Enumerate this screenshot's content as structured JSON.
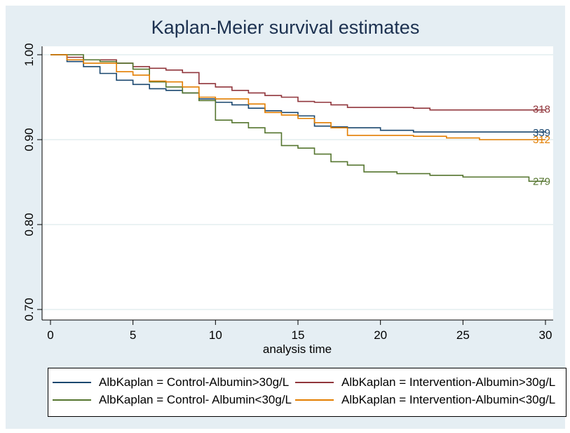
{
  "chart_data": {
    "type": "line",
    "title": "Kaplan-Meier survival estimates",
    "xlabel": "analysis time",
    "ylabel": "",
    "xlim": [
      0,
      30
    ],
    "ylim": [
      0.7,
      1.0
    ],
    "x_ticks": [
      "0",
      "5",
      "10",
      "15",
      "20",
      "25",
      "30"
    ],
    "y_ticks": [
      "0.70",
      "0.80",
      "0.90",
      "1.00"
    ],
    "grid": true,
    "legend_position": "bottom",
    "series": [
      {
        "name": "AlbKaplan = Control-Albumin>30g/L",
        "color": "#1a476f",
        "end_label": "339",
        "x": [
          0,
          1,
          2,
          3,
          4,
          5,
          6,
          7,
          8,
          9,
          10,
          11,
          12,
          13,
          14,
          15,
          16,
          17,
          18,
          20,
          22,
          23,
          25,
          28,
          30
        ],
        "y": [
          1.0,
          0.992,
          0.986,
          0.978,
          0.97,
          0.965,
          0.96,
          0.958,
          0.955,
          0.948,
          0.944,
          0.941,
          0.937,
          0.934,
          0.932,
          0.928,
          0.916,
          0.915,
          0.914,
          0.911,
          0.909,
          0.909,
          0.909,
          0.909,
          0.909
        ]
      },
      {
        "name": "AlbKaplan = Intervention-Albumin>30g/L",
        "color": "#90353b",
        "end_label": "318",
        "x": [
          0,
          1,
          2,
          4,
          5,
          6,
          7,
          8,
          9,
          10,
          11,
          12,
          13,
          14,
          15,
          16,
          17,
          18,
          20,
          22,
          23,
          25,
          28,
          30
        ],
        "y": [
          1.0,
          0.997,
          0.994,
          0.99,
          0.986,
          0.984,
          0.982,
          0.979,
          0.966,
          0.962,
          0.958,
          0.955,
          0.952,
          0.95,
          0.945,
          0.944,
          0.941,
          0.938,
          0.938,
          0.937,
          0.935,
          0.935,
          0.935,
          0.935
        ]
      },
      {
        "name": "AlbKaplan = Control- Albumin<30g/L",
        "color": "#55752f",
        "end_label": "279",
        "x": [
          0,
          1,
          2,
          3,
          4,
          5,
          6,
          7,
          8,
          9,
          10,
          11,
          12,
          13,
          14,
          15,
          16,
          17,
          18,
          19,
          21,
          23,
          25,
          27,
          29,
          30
        ],
        "y": [
          1.0,
          1.0,
          0.994,
          0.992,
          0.99,
          0.983,
          0.968,
          0.962,
          0.955,
          0.946,
          0.923,
          0.92,
          0.914,
          0.908,
          0.893,
          0.89,
          0.883,
          0.874,
          0.87,
          0.862,
          0.86,
          0.858,
          0.856,
          0.856,
          0.851,
          0.851
        ]
      },
      {
        "name": "AlbKaplan = Intervention-Albumin<30g/L",
        "color": "#e37e00",
        "end_label": "312",
        "x": [
          0,
          1,
          2,
          4,
          5,
          6,
          7,
          8,
          9,
          10,
          11,
          12,
          13,
          14,
          15,
          16,
          17,
          18,
          20,
          22,
          24,
          26,
          28,
          30
        ],
        "y": [
          1.0,
          0.994,
          0.99,
          0.98,
          0.976,
          0.969,
          0.968,
          0.962,
          0.95,
          0.948,
          0.948,
          0.942,
          0.932,
          0.929,
          0.925,
          0.92,
          0.914,
          0.905,
          0.905,
          0.904,
          0.902,
          0.9,
          0.9,
          0.9
        ]
      }
    ]
  }
}
